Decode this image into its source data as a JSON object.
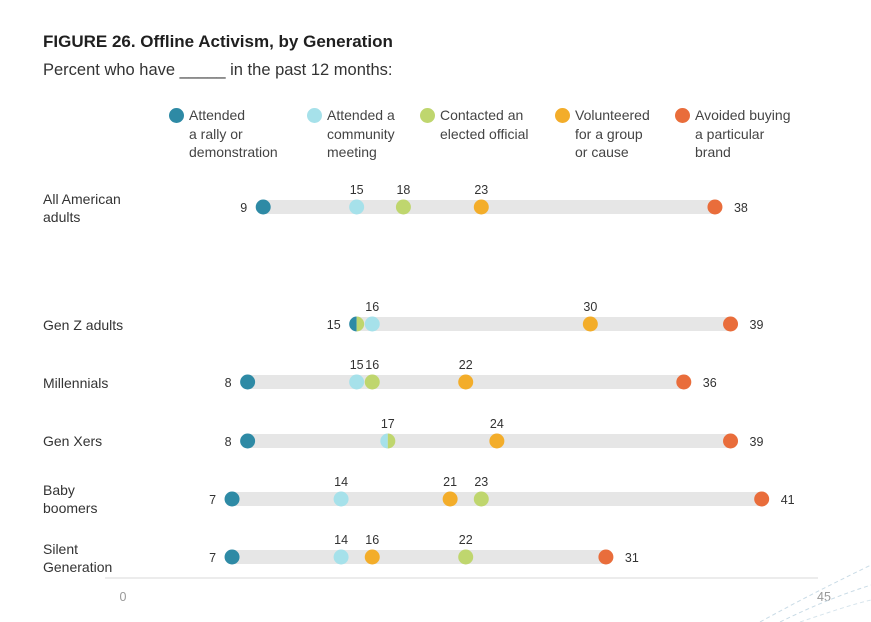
{
  "figure": {
    "title": "FIGURE 26. Offline Activism, by Generation",
    "subtitle": "Percent who have _____ in the past 12 months:"
  },
  "chart_data": {
    "type": "scatter",
    "title": "FIGURE 26. Offline Activism, by Generation",
    "subtitle": "Percent who have _____ in the past 12 months:",
    "x_range": [
      0,
      45
    ],
    "x_ticks": [
      "0",
      "45"
    ],
    "legend_position": "top",
    "grid": false,
    "series": [
      {
        "name": "Attended a rally or demonstration",
        "color": "#2e8aa5"
      },
      {
        "name": "Attended a community meeting",
        "color": "#a6e1ea"
      },
      {
        "name": "Contacted an elected official",
        "color": "#bfd66e"
      },
      {
        "name": "Volunteered for a group or cause",
        "color": "#f3ad2a"
      },
      {
        "name": "Avoided buying a particular brand",
        "color": "#e96d3b"
      }
    ],
    "rows": [
      {
        "label": "All American adults",
        "values": [
          9,
          15,
          18,
          23,
          38
        ]
      },
      {
        "label": "Gen Z adults",
        "values": [
          15,
          16,
          15,
          30,
          39
        ]
      },
      {
        "label": "Millennials",
        "values": [
          8,
          15,
          16,
          22,
          36
        ]
      },
      {
        "label": "Gen Xers",
        "values": [
          8,
          17,
          17,
          24,
          39
        ]
      },
      {
        "label": "Baby boomers",
        "values": [
          7,
          14,
          23,
          21,
          41
        ]
      },
      {
        "label": "Silent Generation",
        "values": [
          7,
          14,
          22,
          16,
          31
        ]
      }
    ]
  },
  "legend": {
    "items": [
      {
        "label": "Attended\na rally or\ndemonstration",
        "color": "#2e8aa5"
      },
      {
        "label": "Attended a\ncommunity\nmeeting",
        "color": "#a6e1ea"
      },
      {
        "label": "Contacted an\nelected official",
        "color": "#bfd66e"
      },
      {
        "label": "Volunteered\nfor a group\nor cause",
        "color": "#f3ad2a"
      },
      {
        "label": "Avoided buying\na particular\nbrand",
        "color": "#e96d3b"
      }
    ]
  },
  "row_labels": [
    "All American\nadults",
    "Gen Z adults",
    "Millennials",
    "Gen Xers",
    "Baby\nboomers",
    "Silent\nGeneration"
  ]
}
